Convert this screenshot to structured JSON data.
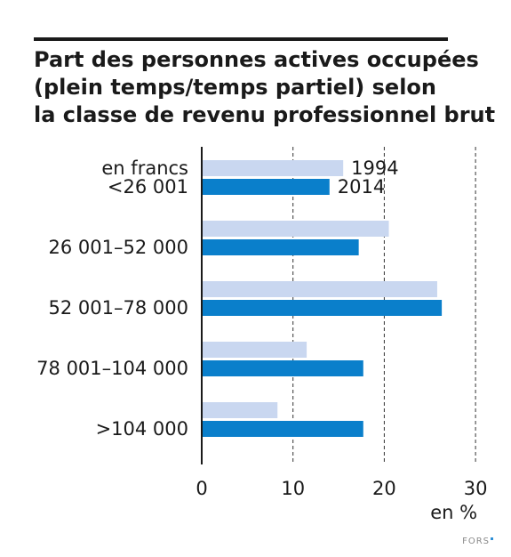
{
  "chart_data": {
    "type": "bar",
    "orientation": "horizontal",
    "title_lines": [
      "Part des personnes actives occupées",
      "(plein temps/temps partiel) selon",
      "la classe de revenu professionnel brut"
    ],
    "category_unit_label": "en francs",
    "categories": [
      "<26 001",
      "26 001–52 000",
      "52 001–78 000",
      "78 001–104 000",
      ">104 000"
    ],
    "series": [
      {
        "name": "1994",
        "color": "#c9d7f0",
        "values": [
          15.5,
          20.5,
          25.8,
          11.5,
          8.3
        ]
      },
      {
        "name": "2014",
        "color": "#0a7fcb",
        "values": [
          14.0,
          17.2,
          26.3,
          17.7,
          17.7
        ]
      }
    ],
    "xlabel": "en %",
    "xlim": [
      0,
      30
    ],
    "xticks": [
      "0",
      "10",
      "20",
      "30"
    ],
    "grid": "dashed vertical at 10, 20, 30",
    "legend": "inline labels on first category bars"
  },
  "footer": {
    "source_logo_text": "FORS"
  }
}
